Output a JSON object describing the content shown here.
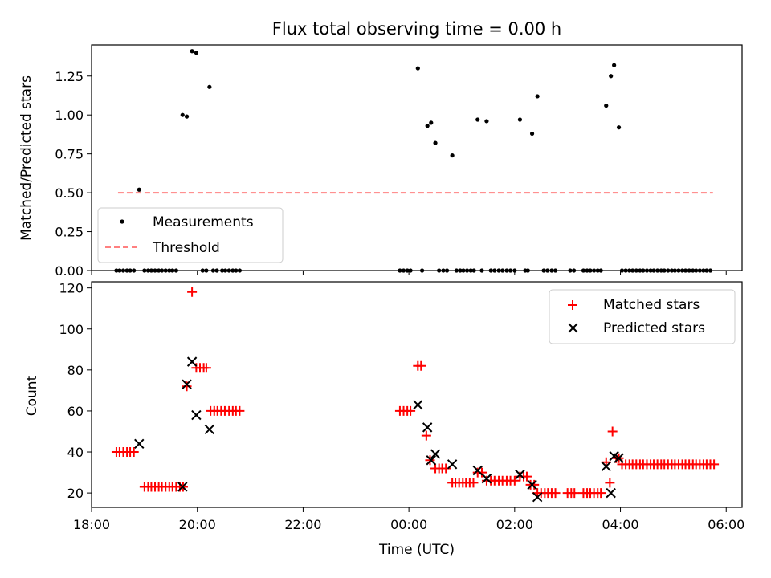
{
  "chart_data": [
    {
      "type": "scatter",
      "title": "Flux total observing time = 0.00 h",
      "ylabel": "Matched/Predicted stars",
      "xlabel": "",
      "ylim": [
        0,
        1.45
      ],
      "yticks": [
        "0.00",
        "0.25",
        "0.50",
        "0.75",
        "1.00",
        "1.25"
      ],
      "legend": {
        "location": "lower-left",
        "entries": [
          "Measurements",
          "Threshold"
        ]
      },
      "threshold": {
        "name": "Threshold",
        "value": 0.5,
        "x_start_h": 18.5,
        "x_end_h": 29.75,
        "color": "#ff8080"
      },
      "series": [
        {
          "name": "Measurements",
          "color": "#000000",
          "x_h": [
            18.9,
            19.72,
            19.8,
            19.9,
            19.98,
            20.23,
            24.17,
            24.35,
            24.42,
            24.5,
            24.82,
            25.3,
            25.47,
            26.1,
            26.33,
            26.43,
            27.73,
            27.82,
            27.88,
            27.97
          ],
          "y": [
            0.52,
            1.0,
            0.99,
            1.41,
            1.4,
            1.18,
            1.3,
            0.93,
            0.95,
            0.82,
            0.74,
            0.97,
            0.96,
            0.97,
            0.88,
            1.12,
            1.06,
            1.25,
            1.32,
            0.92
          ]
        },
        {
          "name": "Measurements (zero)",
          "color": "#000000",
          "x_h": [
            18.47,
            18.53,
            18.6,
            18.67,
            18.73,
            18.8,
            19.0,
            19.07,
            19.13,
            19.2,
            19.27,
            19.33,
            19.4,
            19.47,
            19.53,
            19.6,
            20.1,
            20.17,
            20.3,
            20.37,
            20.47,
            20.53,
            20.6,
            20.67,
            20.73,
            20.8,
            23.83,
            23.9,
            23.97,
            24.03,
            24.25,
            24.57,
            24.65,
            24.72,
            24.9,
            24.97,
            25.03,
            25.1,
            25.17,
            25.23,
            25.38,
            25.55,
            25.62,
            25.7,
            25.77,
            25.85,
            25.92,
            26.0,
            26.2,
            26.25,
            26.55,
            26.62,
            26.7,
            26.77,
            27.05,
            27.12,
            27.3,
            27.37,
            27.43,
            27.5,
            27.57,
            27.63,
            28.03,
            28.1,
            28.17,
            28.23,
            28.3,
            28.37,
            28.43,
            28.5,
            28.57,
            28.63,
            28.7,
            28.77,
            28.83,
            28.9,
            28.97,
            29.03,
            29.1,
            29.17,
            29.23,
            29.3,
            29.37,
            29.43,
            29.5,
            29.57,
            29.63,
            29.7
          ],
          "y_value": 0
        }
      ]
    },
    {
      "type": "scatter",
      "title": "",
      "ylabel": "Count",
      "xlabel": "Time (UTC)",
      "xlim_h": [
        18.0,
        30.3
      ],
      "ylim": [
        13,
        123
      ],
      "yticks": [
        "20",
        "40",
        "60",
        "80",
        "100",
        "120"
      ],
      "xticks": [
        "18:00",
        "20:00",
        "22:00",
        "00:00",
        "02:00",
        "04:00",
        "06:00"
      ],
      "legend": {
        "location": "top-right",
        "entries": [
          "Matched stars",
          "Predicted stars"
        ]
      },
      "series": [
        {
          "name": "Matched stars",
          "marker": "+",
          "color": "#ff0000",
          "points": [
            [
              18.47,
              40
            ],
            [
              18.53,
              40
            ],
            [
              18.6,
              40
            ],
            [
              18.67,
              40
            ],
            [
              18.73,
              40
            ],
            [
              18.8,
              40
            ],
            [
              19.0,
              23
            ],
            [
              19.07,
              23
            ],
            [
              19.13,
              23
            ],
            [
              19.2,
              23
            ],
            [
              19.27,
              23
            ],
            [
              19.33,
              23
            ],
            [
              19.4,
              23
            ],
            [
              19.47,
              23
            ],
            [
              19.53,
              23
            ],
            [
              19.6,
              23
            ],
            [
              19.67,
              23
            ],
            [
              19.73,
              23
            ],
            [
              19.8,
              72
            ],
            [
              19.9,
              118
            ],
            [
              19.98,
              81
            ],
            [
              20.05,
              81
            ],
            [
              20.12,
              81
            ],
            [
              20.17,
              81
            ],
            [
              20.25,
              60
            ],
            [
              20.32,
              60
            ],
            [
              20.38,
              60
            ],
            [
              20.45,
              60
            ],
            [
              20.52,
              60
            ],
            [
              20.6,
              60
            ],
            [
              20.67,
              60
            ],
            [
              20.73,
              60
            ],
            [
              20.8,
              60
            ],
            [
              23.83,
              60
            ],
            [
              23.9,
              60
            ],
            [
              23.97,
              60
            ],
            [
              24.03,
              60
            ],
            [
              24.17,
              82
            ],
            [
              24.23,
              82
            ],
            [
              24.33,
              48
            ],
            [
              24.4,
              36
            ],
            [
              24.5,
              32
            ],
            [
              24.57,
              32
            ],
            [
              24.63,
              32
            ],
            [
              24.7,
              32
            ],
            [
              24.82,
              25
            ],
            [
              24.88,
              25
            ],
            [
              24.95,
              25
            ],
            [
              25.02,
              25
            ],
            [
              25.08,
              25
            ],
            [
              25.15,
              25
            ],
            [
              25.22,
              25
            ],
            [
              25.3,
              30
            ],
            [
              25.38,
              30
            ],
            [
              25.47,
              26
            ],
            [
              25.55,
              26
            ],
            [
              25.62,
              26
            ],
            [
              25.7,
              26
            ],
            [
              25.77,
              26
            ],
            [
              25.85,
              26
            ],
            [
              25.92,
              26
            ],
            [
              26.0,
              26
            ],
            [
              26.1,
              28
            ],
            [
              26.17,
              28
            ],
            [
              26.23,
              28
            ],
            [
              26.3,
              24
            ],
            [
              26.37,
              24
            ],
            [
              26.43,
              20
            ],
            [
              26.5,
              20
            ],
            [
              26.57,
              20
            ],
            [
              26.63,
              20
            ],
            [
              26.7,
              20
            ],
            [
              26.77,
              20
            ],
            [
              27.0,
              20
            ],
            [
              27.07,
              20
            ],
            [
              27.13,
              20
            ],
            [
              27.3,
              20
            ],
            [
              27.37,
              20
            ],
            [
              27.43,
              20
            ],
            [
              27.5,
              20
            ],
            [
              27.57,
              20
            ],
            [
              27.63,
              20
            ],
            [
              27.73,
              35
            ],
            [
              27.8,
              25
            ],
            [
              27.85,
              50
            ],
            [
              27.92,
              37
            ],
            [
              27.97,
              37
            ],
            [
              28.03,
              34
            ],
            [
              28.1,
              34
            ],
            [
              28.17,
              34
            ],
            [
              28.23,
              34
            ],
            [
              28.3,
              34
            ],
            [
              28.37,
              34
            ],
            [
              28.43,
              34
            ],
            [
              28.5,
              34
            ],
            [
              28.57,
              34
            ],
            [
              28.63,
              34
            ],
            [
              28.7,
              34
            ],
            [
              28.77,
              34
            ],
            [
              28.83,
              34
            ],
            [
              28.9,
              34
            ],
            [
              28.97,
              34
            ],
            [
              29.03,
              34
            ],
            [
              29.1,
              34
            ],
            [
              29.17,
              34
            ],
            [
              29.23,
              34
            ],
            [
              29.3,
              34
            ],
            [
              29.37,
              34
            ],
            [
              29.43,
              34
            ],
            [
              29.5,
              34
            ],
            [
              29.57,
              34
            ],
            [
              29.63,
              34
            ],
            [
              29.7,
              34
            ],
            [
              29.77,
              34
            ]
          ]
        },
        {
          "name": "Predicted stars",
          "marker": "x",
          "color": "#000000",
          "points": [
            [
              18.9,
              44
            ],
            [
              19.72,
              23
            ],
            [
              19.8,
              73
            ],
            [
              19.9,
              84
            ],
            [
              19.98,
              58
            ],
            [
              20.23,
              51
            ],
            [
              24.17,
              63
            ],
            [
              24.35,
              52
            ],
            [
              24.42,
              36
            ],
            [
              24.5,
              39
            ],
            [
              24.82,
              34
            ],
            [
              25.3,
              31
            ],
            [
              25.47,
              27
            ],
            [
              26.1,
              29
            ],
            [
              26.33,
              24
            ],
            [
              26.43,
              18
            ],
            [
              27.73,
              33
            ],
            [
              27.82,
              20
            ],
            [
              27.88,
              38
            ],
            [
              27.97,
              37
            ]
          ]
        }
      ]
    }
  ]
}
